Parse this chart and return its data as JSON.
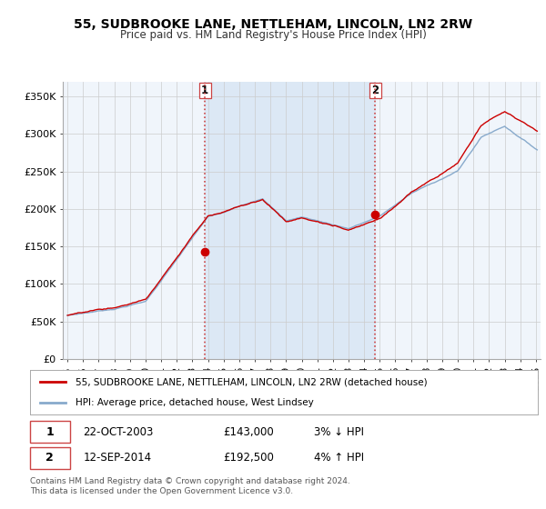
{
  "title": "55, SUDBROOKE LANE, NETTLEHAM, LINCOLN, LN2 2RW",
  "subtitle": "Price paid vs. HM Land Registry's House Price Index (HPI)",
  "ylabel_ticks": [
    "£0",
    "£50K",
    "£100K",
    "£150K",
    "£200K",
    "£250K",
    "£300K",
    "£350K"
  ],
  "ytick_vals": [
    0,
    50000,
    100000,
    150000,
    200000,
    250000,
    300000,
    350000
  ],
  "ylim": [
    0,
    370000
  ],
  "xlim_start": 1994.7,
  "xlim_end": 2025.3,
  "purchase1": {
    "year": 2003.8,
    "price": 143000,
    "label": "1"
  },
  "purchase2": {
    "year": 2014.7,
    "price": 192500,
    "label": "2"
  },
  "vline1_x": 2003.8,
  "vline2_x": 2014.7,
  "legend_line1": "55, SUDBROOKE LANE, NETTLEHAM, LINCOLN, LN2 2RW (detached house)",
  "legend_line2": "HPI: Average price, detached house, West Lindsey",
  "table_row1": [
    "1",
    "22-OCT-2003",
    "£143,000",
    "3% ↓ HPI"
  ],
  "table_row2": [
    "2",
    "12-SEP-2014",
    "£192,500",
    "4% ↑ HPI"
  ],
  "footer": "Contains HM Land Registry data © Crown copyright and database right 2024.\nThis data is licensed under the Open Government Licence v3.0.",
  "line_color_red": "#cc0000",
  "line_color_blue": "#88aacc",
  "highlight_color": "#dce8f5",
  "bg_color": "#f0f5fb",
  "grid_color": "#cccccc",
  "vline_color": "#cc4444",
  "marker_color_red": "#cc0000"
}
